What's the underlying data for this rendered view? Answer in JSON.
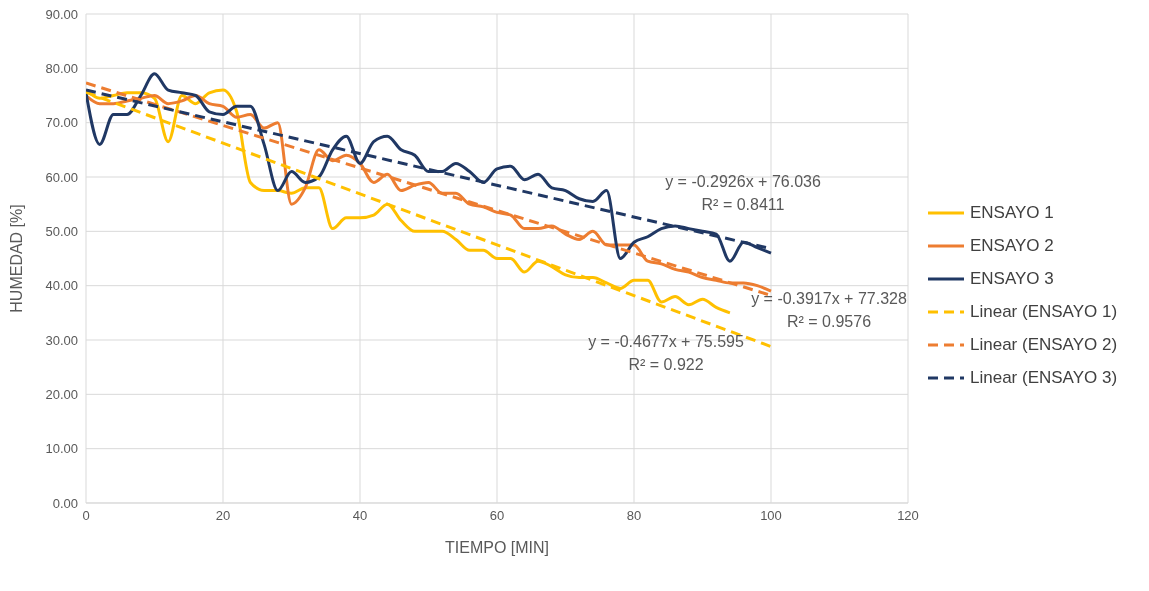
{
  "chart_data": {
    "type": "line",
    "xlabel": "TIEMPO [MIN]",
    "ylabel": "HUMEDAD [%]",
    "xlim": [
      0,
      120
    ],
    "xticks": [
      0,
      20,
      40,
      60,
      80,
      100,
      120
    ],
    "ylim": [
      0,
      90
    ],
    "yticks": [
      {
        "value": 0,
        "label": "0.00"
      },
      {
        "value": 10,
        "label": "10.00"
      },
      {
        "value": 20,
        "label": "20.00"
      },
      {
        "value": 30,
        "label": "30.00"
      },
      {
        "value": 40,
        "label": "40.00"
      },
      {
        "value": 50,
        "label": "50.00"
      },
      {
        "value": 60,
        "label": "60.00"
      },
      {
        "value": 70,
        "label": "70.00"
      },
      {
        "value": 80,
        "label": "80.00"
      },
      {
        "value": 90,
        "label": "90.00"
      }
    ],
    "grid": true,
    "legend": "right",
    "marker": "none",
    "series": [
      {
        "name": "ENSAYO 1",
        "color": "#ffc000",
        "line_style": "solid",
        "x": [
          0,
          2,
          4,
          6,
          8,
          10,
          12,
          14,
          16,
          18,
          20,
          22,
          24,
          26,
          28,
          30,
          32,
          34,
          36,
          38,
          40,
          42,
          44,
          46,
          48,
          50,
          52,
          54,
          56,
          58,
          60,
          62,
          64,
          66,
          68,
          70,
          72,
          74,
          76,
          78,
          80,
          82,
          84,
          86,
          88,
          90,
          92,
          94
        ],
        "values": [
          76,
          74.5,
          75,
          75.5,
          75.5,
          74.5,
          66.5,
          75,
          73.5,
          75.5,
          76,
          72,
          59,
          57.5,
          57.5,
          57,
          58,
          58,
          50.5,
          52.5,
          52.5,
          53,
          55,
          52,
          50,
          50,
          50,
          48.5,
          46.5,
          46.5,
          45,
          45,
          42.5,
          44.5,
          43.5,
          42,
          41.5,
          41.5,
          40.5,
          39.5,
          41,
          41,
          37,
          38,
          36.5,
          37.5,
          36,
          35
        ]
      },
      {
        "name": "ENSAYO 2",
        "color": "#ed7d31",
        "line_style": "solid",
        "x": [
          0,
          2,
          4,
          6,
          8,
          10,
          12,
          14,
          16,
          18,
          20,
          22,
          24,
          26,
          28,
          30,
          32,
          34,
          36,
          38,
          40,
          42,
          44,
          46,
          48,
          50,
          52,
          54,
          56,
          58,
          60,
          62,
          64,
          66,
          68,
          70,
          72,
          74,
          76,
          78,
          80,
          82,
          84,
          86,
          88,
          90,
          92,
          94,
          96,
          98,
          100
        ],
        "values": [
          75,
          73.5,
          73.5,
          74,
          74.5,
          75,
          73.5,
          74,
          75,
          73.5,
          73,
          71,
          71.5,
          69,
          70,
          55,
          58,
          65,
          63,
          64,
          62.5,
          59,
          60.5,
          57.5,
          58.5,
          59,
          57,
          57,
          55,
          54.5,
          53.5,
          53,
          50.5,
          50.5,
          51,
          49.5,
          48.5,
          50,
          47.5,
          47.5,
          47.5,
          44.5,
          44,
          43,
          42.5,
          41.5,
          41,
          40.5,
          40.5,
          40,
          39
        ]
      },
      {
        "name": "ENSAYO 3",
        "color": "#203864",
        "line_style": "solid",
        "x": [
          0,
          2,
          4,
          6,
          8,
          10,
          12,
          14,
          16,
          18,
          20,
          22,
          24,
          26,
          28,
          30,
          32,
          34,
          36,
          38,
          40,
          42,
          44,
          46,
          48,
          50,
          52,
          54,
          56,
          58,
          60,
          62,
          64,
          66,
          68,
          70,
          72,
          74,
          76,
          78,
          80,
          82,
          84,
          86,
          88,
          90,
          92,
          94,
          96,
          98,
          100
        ],
        "values": [
          75.5,
          66,
          71.5,
          71.5,
          75,
          79,
          76,
          75.5,
          75,
          72,
          71.5,
          73,
          73,
          66,
          57.5,
          61,
          59,
          60,
          65,
          67.5,
          62.5,
          66.5,
          67.5,
          65,
          64,
          61,
          61,
          62.5,
          61,
          59,
          61.5,
          62,
          59.5,
          60.5,
          58,
          57.5,
          56,
          55.5,
          57.5,
          45,
          48,
          49,
          50.5,
          51,
          50.5,
          50,
          49.5,
          44.5,
          48,
          47,
          46
        ]
      },
      {
        "name": "Linear (ENSAYO 1)",
        "color": "#ffc000",
        "line_style": "dashed",
        "x": [
          0,
          100
        ],
        "values": [
          75.6,
          28.8
        ]
      },
      {
        "name": "Linear (ENSAYO 2)",
        "color": "#ed7d31",
        "line_style": "dashed",
        "x": [
          0,
          100
        ],
        "values": [
          77.3,
          38.2
        ]
      },
      {
        "name": "Linear (ENSAYO 3)",
        "color": "#203864",
        "line_style": "dashed",
        "x": [
          0,
          100
        ],
        "values": [
          76.0,
          46.8
        ]
      }
    ],
    "annotations": [
      "y = -0.4677x + 75.595",
      "R² = 0.922",
      "y = -0.3917x + 77.328",
      "R² = 0.9576",
      "y = -0.2926x + 76.036",
      "R² = 0.8411"
    ]
  }
}
